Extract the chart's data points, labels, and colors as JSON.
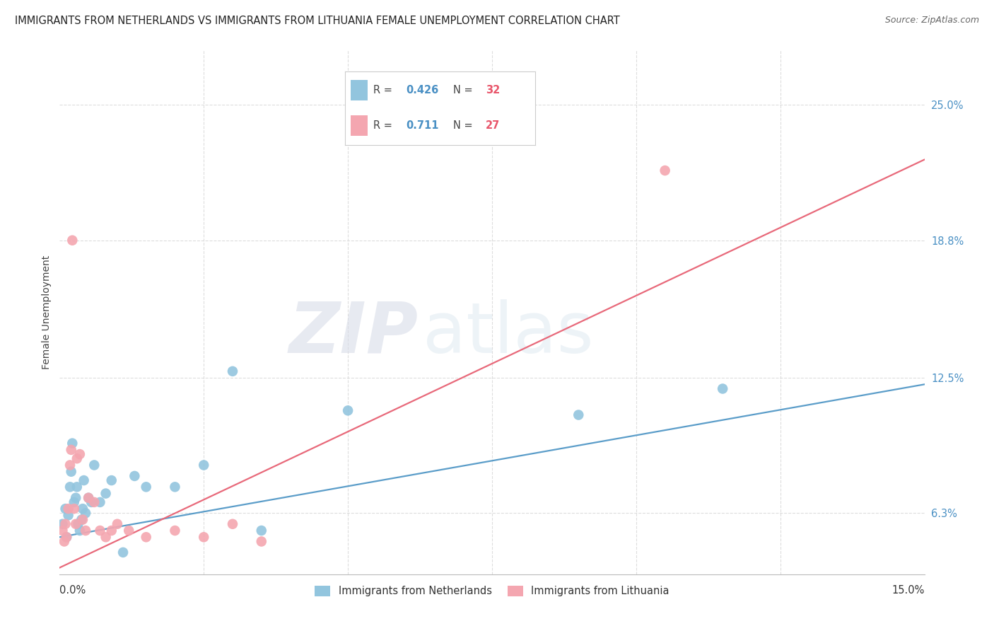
{
  "title": "IMMIGRANTS FROM NETHERLANDS VS IMMIGRANTS FROM LITHUANIA FEMALE UNEMPLOYMENT CORRELATION CHART",
  "source": "Source: ZipAtlas.com",
  "ylabel": "Female Unemployment",
  "ytick_labels": [
    "6.3%",
    "12.5%",
    "18.8%",
    "25.0%"
  ],
  "ytick_values": [
    6.3,
    12.5,
    18.8,
    25.0
  ],
  "xlim": [
    0.0,
    15.0
  ],
  "ylim": [
    3.5,
    27.5
  ],
  "netherlands_color": "#92C5DE",
  "lithuania_color": "#F4A6B0",
  "netherlands_line_color": "#5B9DC9",
  "lithuania_line_color": "#E8697A",
  "netherlands_x": [
    0.05,
    0.1,
    0.12,
    0.15,
    0.18,
    0.2,
    0.22,
    0.25,
    0.28,
    0.3,
    0.32,
    0.35,
    0.38,
    0.4,
    0.42,
    0.45,
    0.5,
    0.55,
    0.6,
    0.7,
    0.8,
    0.9,
    1.1,
    1.3,
    1.5,
    2.0,
    2.5,
    3.0,
    3.5,
    5.0,
    9.0,
    11.5
  ],
  "netherlands_y": [
    5.8,
    6.5,
    5.2,
    6.2,
    7.5,
    8.2,
    9.5,
    6.8,
    7.0,
    7.5,
    5.8,
    5.5,
    6.0,
    6.5,
    7.8,
    6.3,
    7.0,
    6.8,
    8.5,
    6.8,
    7.2,
    7.8,
    4.5,
    8.0,
    7.5,
    7.5,
    8.5,
    12.8,
    5.5,
    11.0,
    10.8,
    12.0
  ],
  "lithuania_x": [
    0.05,
    0.08,
    0.1,
    0.12,
    0.15,
    0.18,
    0.2,
    0.22,
    0.25,
    0.28,
    0.3,
    0.35,
    0.4,
    0.45,
    0.5,
    0.6,
    0.7,
    0.8,
    0.9,
    1.0,
    1.2,
    1.5,
    2.0,
    2.5,
    3.0,
    3.5,
    10.5
  ],
  "lithuania_y": [
    5.5,
    5.0,
    5.8,
    5.2,
    6.5,
    8.5,
    9.2,
    18.8,
    6.5,
    5.8,
    8.8,
    9.0,
    6.0,
    5.5,
    7.0,
    6.8,
    5.5,
    5.2,
    5.5,
    5.8,
    5.5,
    5.2,
    5.5,
    5.2,
    5.8,
    5.0,
    22.0
  ],
  "nl_line_x0": 0.0,
  "nl_line_y0": 5.2,
  "nl_line_x1": 15.0,
  "nl_line_y1": 12.2,
  "lt_line_x0": 0.0,
  "lt_line_y0": 3.8,
  "lt_line_x1": 15.0,
  "lt_line_y1": 22.5,
  "watermark_line1": "ZIP",
  "watermark_line2": "atlas",
  "background_color": "#ffffff",
  "grid_color": "#dddddd",
  "legend_R1": "R = 0.426",
  "legend_N1": "N = 32",
  "legend_R2": "R =  0.711",
  "legend_N2": "N = 27",
  "title_fontsize": 10.5,
  "source_fontsize": 9,
  "axis_label_fontsize": 10,
  "tick_fontsize": 10.5,
  "legend_fontsize": 10.5
}
